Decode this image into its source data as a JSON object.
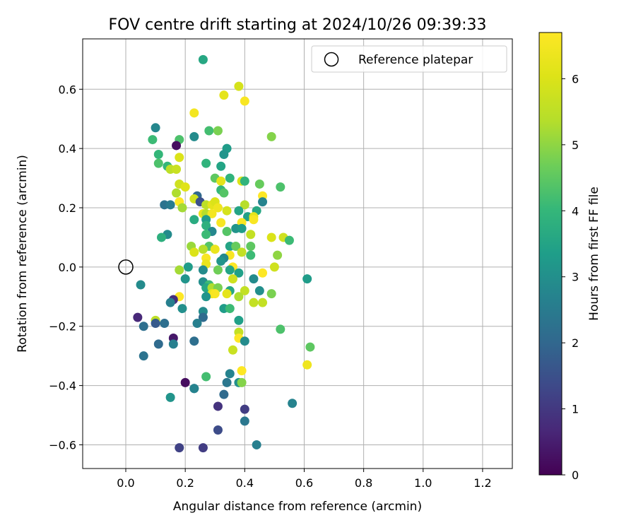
{
  "chart_data": {
    "type": "scatter",
    "title": "FOV centre drift starting at 2024/10/26 09:39:33",
    "xlabel": "Angular distance from reference (arcmin)",
    "ylabel": "Rotation from reference (arcmin)",
    "xlim": [
      -0.145,
      1.3
    ],
    "ylim": [
      -0.68,
      0.77
    ],
    "x_ticks": [
      0.0,
      0.2,
      0.4,
      0.6,
      0.8,
      1.0,
      1.2
    ],
    "x_tick_labels": [
      "0.0",
      "0.2",
      "0.4",
      "0.6",
      "0.8",
      "1.0",
      "1.2"
    ],
    "y_ticks": [
      -0.6,
      -0.4,
      -0.2,
      0.0,
      0.2,
      0.4,
      0.6
    ],
    "y_tick_labels": [
      "−0.6",
      "−0.4",
      "−0.2",
      "0.0",
      "0.2",
      "0.4",
      "0.6"
    ],
    "grid": true,
    "legend": {
      "position": "top-right",
      "entries": [
        "Reference platepar"
      ]
    },
    "reference_point": {
      "x": 0.0,
      "y": 0.0
    },
    "colorbar": {
      "label": "Hours from first FF file",
      "range": [
        0,
        6.7
      ],
      "ticks": [
        0,
        1,
        2,
        3,
        4,
        5,
        6
      ],
      "tick_labels": [
        "0",
        "1",
        "2",
        "3",
        "4",
        "5",
        "6"
      ],
      "colormap": "viridis"
    },
    "points": [
      {
        "x": 0.26,
        "y": 0.7,
        "h": 3.6
      },
      {
        "x": 0.38,
        "y": 0.61,
        "h": 5.9
      },
      {
        "x": 0.33,
        "y": 0.58,
        "h": 6.2
      },
      {
        "x": 0.4,
        "y": 0.56,
        "h": 6.6
      },
      {
        "x": 0.23,
        "y": 0.52,
        "h": 6.5
      },
      {
        "x": 0.1,
        "y": 0.47,
        "h": 2.8
      },
      {
        "x": 0.28,
        "y": 0.46,
        "h": 4.2
      },
      {
        "x": 0.31,
        "y": 0.46,
        "h": 4.8
      },
      {
        "x": 0.49,
        "y": 0.44,
        "h": 4.9
      },
      {
        "x": 0.23,
        "y": 0.44,
        "h": 2.9
      },
      {
        "x": 0.09,
        "y": 0.43,
        "h": 4.1
      },
      {
        "x": 0.18,
        "y": 0.43,
        "h": 4.3
      },
      {
        "x": 0.17,
        "y": 0.41,
        "h": 0.2
      },
      {
        "x": 0.34,
        "y": 0.4,
        "h": 3.3
      },
      {
        "x": 0.33,
        "y": 0.38,
        "h": 3.1
      },
      {
        "x": 0.11,
        "y": 0.38,
        "h": 4.0
      },
      {
        "x": 0.18,
        "y": 0.37,
        "h": 6.0
      },
      {
        "x": 0.11,
        "y": 0.35,
        "h": 4.3
      },
      {
        "x": 0.14,
        "y": 0.34,
        "h": 4.0
      },
      {
        "x": 0.27,
        "y": 0.35,
        "h": 3.9
      },
      {
        "x": 0.32,
        "y": 0.34,
        "h": 3.5
      },
      {
        "x": 0.15,
        "y": 0.33,
        "h": 5.5
      },
      {
        "x": 0.17,
        "y": 0.33,
        "h": 5.7
      },
      {
        "x": 0.35,
        "y": 0.3,
        "h": 3.9
      },
      {
        "x": 0.3,
        "y": 0.3,
        "h": 4.5
      },
      {
        "x": 0.32,
        "y": 0.29,
        "h": 6.2
      },
      {
        "x": 0.39,
        "y": 0.29,
        "h": 6.0
      },
      {
        "x": 0.4,
        "y": 0.29,
        "h": 3.9
      },
      {
        "x": 0.45,
        "y": 0.28,
        "h": 4.6
      },
      {
        "x": 0.18,
        "y": 0.28,
        "h": 5.8
      },
      {
        "x": 0.2,
        "y": 0.27,
        "h": 6.1
      },
      {
        "x": 0.52,
        "y": 0.27,
        "h": 4.3
      },
      {
        "x": 0.32,
        "y": 0.26,
        "h": 4.0
      },
      {
        "x": 0.33,
        "y": 0.25,
        "h": 4.4
      },
      {
        "x": 0.17,
        "y": 0.25,
        "h": 5.3
      },
      {
        "x": 0.46,
        "y": 0.24,
        "h": 6.7
      },
      {
        "x": 0.24,
        "y": 0.24,
        "h": 2.0
      },
      {
        "x": 0.23,
        "y": 0.23,
        "h": 5.8
      },
      {
        "x": 0.46,
        "y": 0.22,
        "h": 2.7
      },
      {
        "x": 0.18,
        "y": 0.22,
        "h": 6.7
      },
      {
        "x": 0.13,
        "y": 0.21,
        "h": 2.3
      },
      {
        "x": 0.15,
        "y": 0.21,
        "h": 2.5
      },
      {
        "x": 0.25,
        "y": 0.22,
        "h": 1.5
      },
      {
        "x": 0.27,
        "y": 0.21,
        "h": 5.5
      },
      {
        "x": 0.29,
        "y": 0.21,
        "h": 6.2
      },
      {
        "x": 0.3,
        "y": 0.22,
        "h": 6.0
      },
      {
        "x": 0.4,
        "y": 0.21,
        "h": 5.4
      },
      {
        "x": 0.19,
        "y": 0.2,
        "h": 5.2
      },
      {
        "x": 0.31,
        "y": 0.2,
        "h": 6.4
      },
      {
        "x": 0.34,
        "y": 0.19,
        "h": 5.9
      },
      {
        "x": 0.38,
        "y": 0.19,
        "h": 3.5
      },
      {
        "x": 0.44,
        "y": 0.19,
        "h": 3.6
      },
      {
        "x": 0.26,
        "y": 0.18,
        "h": 6.3
      },
      {
        "x": 0.27,
        "y": 0.18,
        "h": 5.4
      },
      {
        "x": 0.29,
        "y": 0.18,
        "h": 6.5
      },
      {
        "x": 0.41,
        "y": 0.17,
        "h": 3.4
      },
      {
        "x": 0.43,
        "y": 0.17,
        "h": 6.2
      },
      {
        "x": 0.43,
        "y": 0.16,
        "h": 6.6
      },
      {
        "x": 0.23,
        "y": 0.16,
        "h": 3.7
      },
      {
        "x": 0.27,
        "y": 0.16,
        "h": 3.3
      },
      {
        "x": 0.32,
        "y": 0.15,
        "h": 6.6
      },
      {
        "x": 0.39,
        "y": 0.15,
        "h": 6.6
      },
      {
        "x": 0.27,
        "y": 0.14,
        "h": 3.8
      },
      {
        "x": 0.37,
        "y": 0.13,
        "h": 3.1
      },
      {
        "x": 0.39,
        "y": 0.13,
        "h": 3.3
      },
      {
        "x": 0.29,
        "y": 0.12,
        "h": 2.8
      },
      {
        "x": 0.34,
        "y": 0.12,
        "h": 4.4
      },
      {
        "x": 0.27,
        "y": 0.11,
        "h": 4.1
      },
      {
        "x": 0.14,
        "y": 0.11,
        "h": 2.9
      },
      {
        "x": 0.12,
        "y": 0.1,
        "h": 3.8
      },
      {
        "x": 0.42,
        "y": 0.11,
        "h": 5.6
      },
      {
        "x": 0.49,
        "y": 0.1,
        "h": 6.0
      },
      {
        "x": 0.53,
        "y": 0.1,
        "h": 5.8
      },
      {
        "x": 0.55,
        "y": 0.09,
        "h": 4.1
      },
      {
        "x": 0.22,
        "y": 0.07,
        "h": 5.1
      },
      {
        "x": 0.28,
        "y": 0.07,
        "h": 4.4
      },
      {
        "x": 0.35,
        "y": 0.07,
        "h": 3.5
      },
      {
        "x": 0.37,
        "y": 0.07,
        "h": 4.6
      },
      {
        "x": 0.42,
        "y": 0.07,
        "h": 4.5
      },
      {
        "x": 0.26,
        "y": 0.06,
        "h": 5.4
      },
      {
        "x": 0.3,
        "y": 0.06,
        "h": 6.3
      },
      {
        "x": 0.39,
        "y": 0.05,
        "h": 5.6
      },
      {
        "x": 0.23,
        "y": 0.05,
        "h": 6.0
      },
      {
        "x": 0.35,
        "y": 0.04,
        "h": 6.6
      },
      {
        "x": 0.42,
        "y": 0.04,
        "h": 4.1
      },
      {
        "x": 0.51,
        "y": 0.04,
        "h": 5.0
      },
      {
        "x": 0.27,
        "y": 0.03,
        "h": 6.6
      },
      {
        "x": 0.33,
        "y": 0.03,
        "h": 2.8
      },
      {
        "x": 0.32,
        "y": 0.02,
        "h": 3.1
      },
      {
        "x": 0.27,
        "y": 0.01,
        "h": 6.3
      },
      {
        "x": 0.36,
        "y": 0.0,
        "h": 6.7
      },
      {
        "x": 0.21,
        "y": 0.0,
        "h": 3.3
      },
      {
        "x": 0.26,
        "y": -0.01,
        "h": 2.9
      },
      {
        "x": 0.31,
        "y": -0.01,
        "h": 4.7
      },
      {
        "x": 0.5,
        "y": 0.0,
        "h": 5.8
      },
      {
        "x": 0.18,
        "y": -0.01,
        "h": 5.2
      },
      {
        "x": 0.35,
        "y": -0.01,
        "h": 3.5
      },
      {
        "x": 0.38,
        "y": -0.02,
        "h": 3.4
      },
      {
        "x": 0.46,
        "y": -0.02,
        "h": 6.7
      },
      {
        "x": 0.2,
        "y": -0.04,
        "h": 3.1
      },
      {
        "x": 0.36,
        "y": -0.04,
        "h": 5.8
      },
      {
        "x": 0.43,
        "y": -0.04,
        "h": 2.9
      },
      {
        "x": 0.26,
        "y": -0.05,
        "h": 3.0
      },
      {
        "x": 0.61,
        "y": -0.04,
        "h": 3.3
      },
      {
        "x": 0.05,
        "y": -0.06,
        "h": 2.9
      },
      {
        "x": 0.28,
        "y": -0.06,
        "h": 4.1
      },
      {
        "x": 0.27,
        "y": -0.07,
        "h": 3.6
      },
      {
        "x": 0.29,
        "y": -0.07,
        "h": 5.3
      },
      {
        "x": 0.31,
        "y": -0.07,
        "h": 4.8
      },
      {
        "x": 0.45,
        "y": -0.08,
        "h": 3.0
      },
      {
        "x": 0.4,
        "y": -0.08,
        "h": 5.6
      },
      {
        "x": 0.35,
        "y": -0.08,
        "h": 3.6
      },
      {
        "x": 0.49,
        "y": -0.09,
        "h": 4.8
      },
      {
        "x": 0.29,
        "y": -0.09,
        "h": 6.3
      },
      {
        "x": 0.3,
        "y": -0.09,
        "h": 6.6
      },
      {
        "x": 0.34,
        "y": -0.09,
        "h": 6.2
      },
      {
        "x": 0.27,
        "y": -0.1,
        "h": 3.1
      },
      {
        "x": 0.18,
        "y": -0.1,
        "h": 6.7
      },
      {
        "x": 0.38,
        "y": -0.1,
        "h": 5.3
      },
      {
        "x": 0.16,
        "y": -0.11,
        "h": 0.8
      },
      {
        "x": 0.15,
        "y": -0.12,
        "h": 2.6
      },
      {
        "x": 0.43,
        "y": -0.12,
        "h": 5.6
      },
      {
        "x": 0.46,
        "y": -0.12,
        "h": 5.6
      },
      {
        "x": 0.19,
        "y": -0.14,
        "h": 3.0
      },
      {
        "x": 0.33,
        "y": -0.14,
        "h": 3.3
      },
      {
        "x": 0.35,
        "y": -0.14,
        "h": 4.1
      },
      {
        "x": 0.26,
        "y": -0.15,
        "h": 2.9
      },
      {
        "x": 0.26,
        "y": -0.17,
        "h": 2.1
      },
      {
        "x": 0.04,
        "y": -0.17,
        "h": 0.7
      },
      {
        "x": 0.38,
        "y": -0.18,
        "h": 3.4
      },
      {
        "x": 0.1,
        "y": -0.18,
        "h": 5.5
      },
      {
        "x": 0.1,
        "y": -0.19,
        "h": 1.7
      },
      {
        "x": 0.13,
        "y": -0.19,
        "h": 2.2
      },
      {
        "x": 0.24,
        "y": -0.19,
        "h": 2.6
      },
      {
        "x": 0.06,
        "y": -0.2,
        "h": 2.2
      },
      {
        "x": 0.52,
        "y": -0.21,
        "h": 4.3
      },
      {
        "x": 0.38,
        "y": -0.22,
        "h": 5.6
      },
      {
        "x": 0.16,
        "y": -0.24,
        "h": 0.4
      },
      {
        "x": 0.38,
        "y": -0.24,
        "h": 6.7
      },
      {
        "x": 0.4,
        "y": -0.25,
        "h": 2.9
      },
      {
        "x": 0.11,
        "y": -0.26,
        "h": 2.1
      },
      {
        "x": 0.16,
        "y": -0.26,
        "h": 2.6
      },
      {
        "x": 0.23,
        "y": -0.25,
        "h": 2.2
      },
      {
        "x": 0.62,
        "y": -0.27,
        "h": 4.5
      },
      {
        "x": 0.36,
        "y": -0.28,
        "h": 5.7
      },
      {
        "x": 0.06,
        "y": -0.3,
        "h": 2.3
      },
      {
        "x": 0.61,
        "y": -0.33,
        "h": 6.4
      },
      {
        "x": 0.39,
        "y": -0.35,
        "h": 6.7
      },
      {
        "x": 0.35,
        "y": -0.36,
        "h": 2.7
      },
      {
        "x": 0.27,
        "y": -0.37,
        "h": 4.2
      },
      {
        "x": 0.34,
        "y": -0.39,
        "h": 2.4
      },
      {
        "x": 0.38,
        "y": -0.39,
        "h": 3.0
      },
      {
        "x": 0.39,
        "y": -0.39,
        "h": 4.9
      },
      {
        "x": 0.2,
        "y": -0.39,
        "h": 0.2
      },
      {
        "x": 0.23,
        "y": -0.41,
        "h": 2.3
      },
      {
        "x": 0.23,
        "y": -0.41,
        "h": 2.7
      },
      {
        "x": 0.33,
        "y": -0.43,
        "h": 2.1
      },
      {
        "x": 0.15,
        "y": -0.44,
        "h": 3.1
      },
      {
        "x": 0.56,
        "y": -0.46,
        "h": 2.7
      },
      {
        "x": 0.31,
        "y": -0.47,
        "h": 0.9
      },
      {
        "x": 0.4,
        "y": -0.48,
        "h": 1.1
      },
      {
        "x": 0.4,
        "y": -0.52,
        "h": 2.4
      },
      {
        "x": 0.31,
        "y": -0.55,
        "h": 1.4
      },
      {
        "x": 0.44,
        "y": -0.6,
        "h": 2.6
      },
      {
        "x": 0.18,
        "y": -0.61,
        "h": 1.2
      },
      {
        "x": 0.26,
        "y": -0.61,
        "h": 1.1
      }
    ]
  }
}
